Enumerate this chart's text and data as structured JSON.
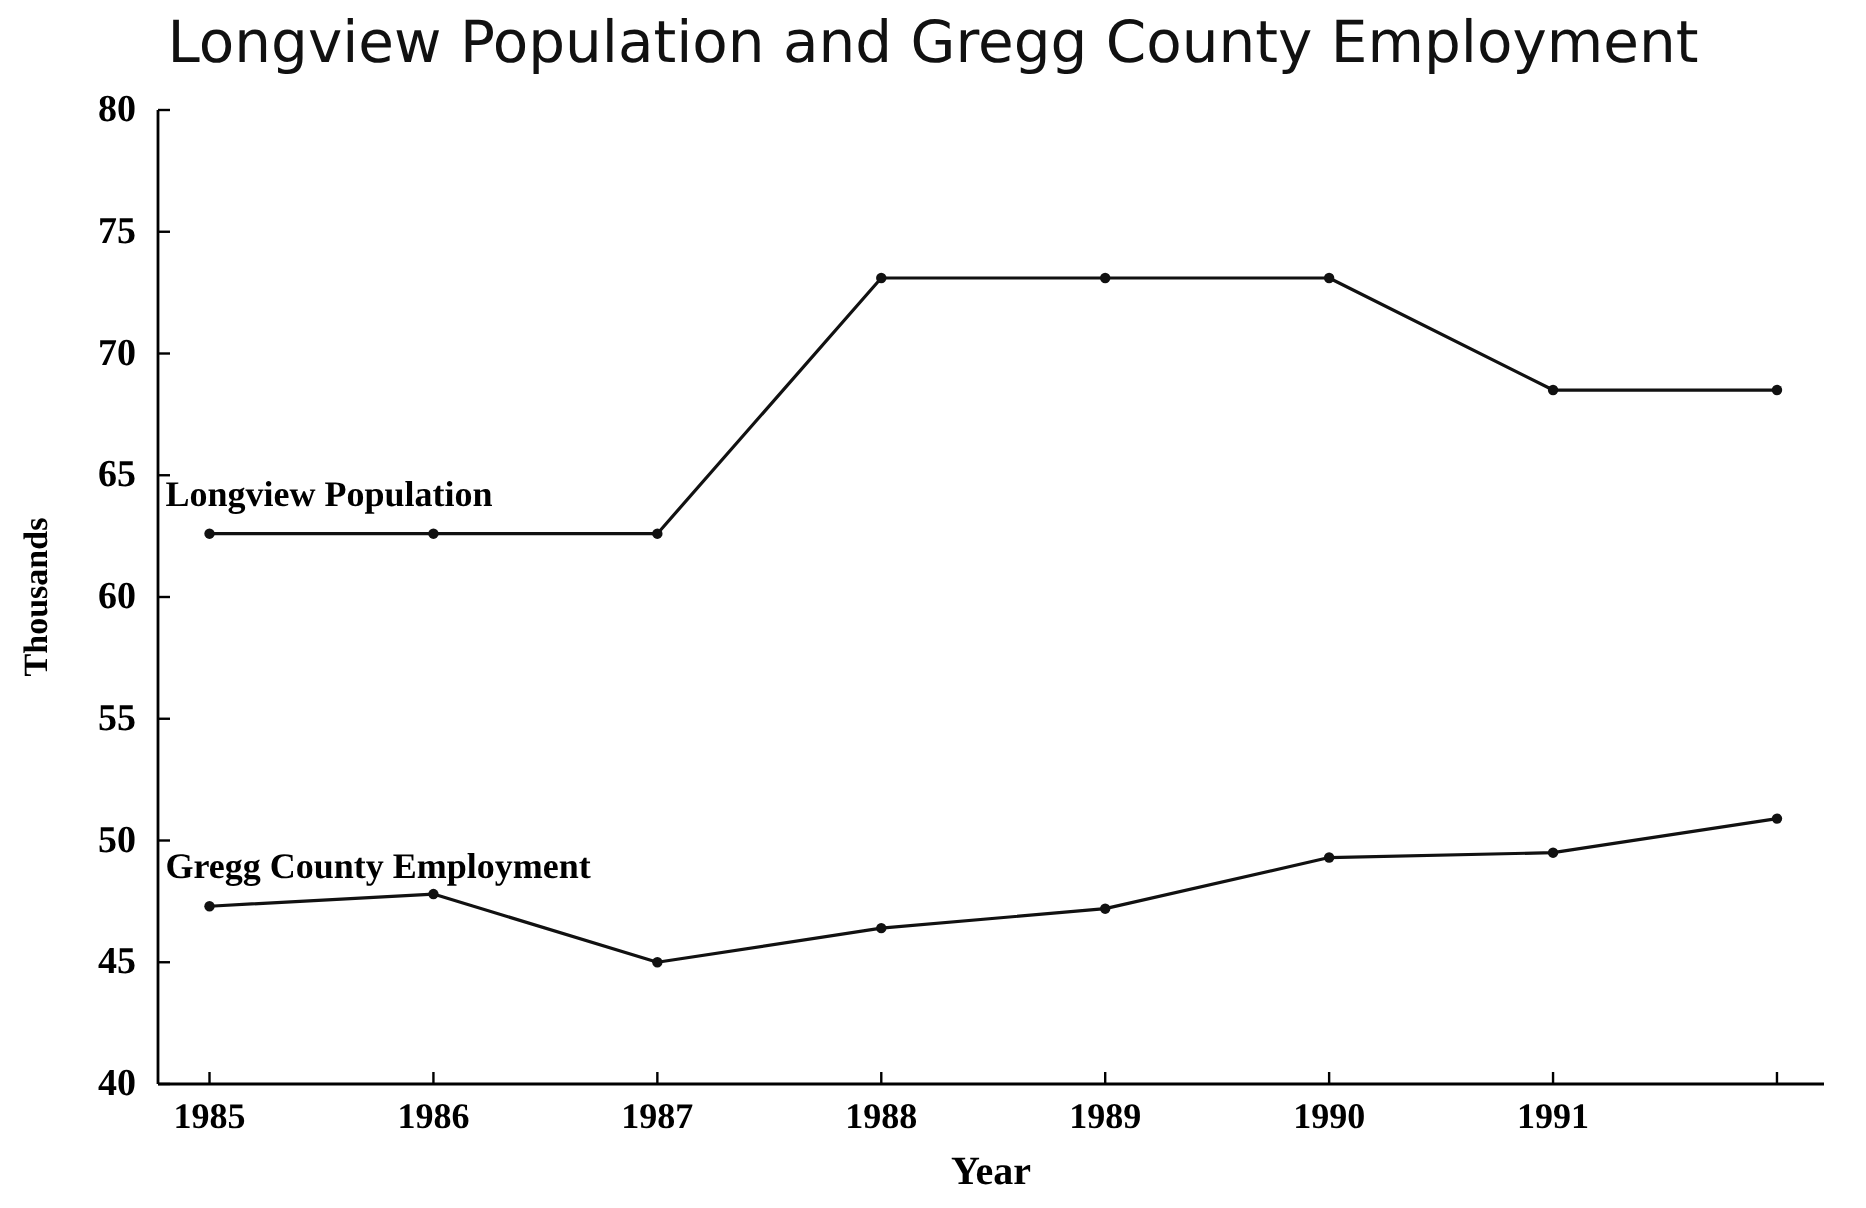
{
  "chart_data": {
    "type": "line",
    "title": "Longview Population and Gregg County Employment",
    "xlabel": "Year",
    "ylabel": "Thousands",
    "x": [
      1985,
      1986,
      1987,
      1988,
      1989,
      1990,
      1991,
      1992
    ],
    "series": [
      {
        "name": "Longview Population",
        "color": "#111111",
        "values": [
          62.6,
          62.6,
          62.6,
          73.1,
          73.1,
          73.1,
          68.5,
          68.5
        ]
      },
      {
        "name": "Gregg County Employment",
        "color": "#111111",
        "values": [
          47.3,
          47.8,
          45.0,
          46.4,
          47.2,
          49.3,
          49.5,
          50.9
        ]
      }
    ],
    "xlim": [
      1984.77,
      1992.21
    ],
    "xticks": [
      1985,
      1986,
      1987,
      1988,
      1989,
      1990,
      1991,
      {
        "value": 1992,
        "label": null
      }
    ],
    "ylim": [
      40,
      80
    ],
    "yticks": [
      40,
      45,
      50,
      55,
      60,
      65,
      70,
      75,
      80
    ],
    "marker": "circle",
    "line_style": "solid"
  }
}
